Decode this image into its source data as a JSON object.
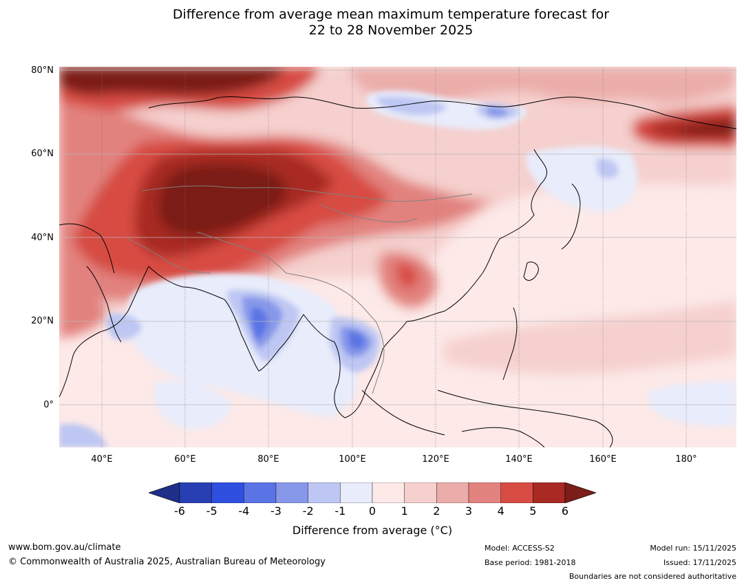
{
  "title": {
    "line1": "Difference from average mean maximum temperature forecast for",
    "line2": "22 to 28 November 2025"
  },
  "map": {
    "lat_labels": [
      "80°N",
      "60°N",
      "40°N",
      "20°N",
      "0°"
    ],
    "lon_labels": [
      "40°E",
      "60°E",
      "80°E",
      "100°E",
      "120°E",
      "140°E",
      "160°E",
      "180°"
    ],
    "lon_range": [
      30,
      190
    ],
    "lat_range": [
      -10,
      80
    ]
  },
  "colorbar": {
    "ticks": [
      "-6",
      "-5",
      "-4",
      "-3",
      "-2",
      "-1",
      "0",
      "1",
      "2",
      "3",
      "4",
      "5",
      "6"
    ],
    "colors": [
      "#1f2f8a",
      "#283fb3",
      "#2f4fe0",
      "#5b74e5",
      "#8798ea",
      "#bec7f3",
      "#e8ecfb",
      "#fce9e8",
      "#f5d0ce",
      "#ebadaa",
      "#e2827e",
      "#d74c43",
      "#a82a23",
      "#7b1d18"
    ],
    "label": "Difference from average ($^\\circ$C)",
    "label_display": "Difference from average (°C)"
  },
  "footer": {
    "url": "www.bom.gov.au/climate",
    "copyright": "© Commonwealth of Australia 2025, Australian Bureau of Meteorology",
    "model": "Model: ACCESS-S2",
    "base_period": "Base period: 1981-2018",
    "model_run": "Model run: 15/11/2025",
    "issued": "Issued: 17/11/2025",
    "disclaimer": "Boundaries are not considered authoritative"
  }
}
